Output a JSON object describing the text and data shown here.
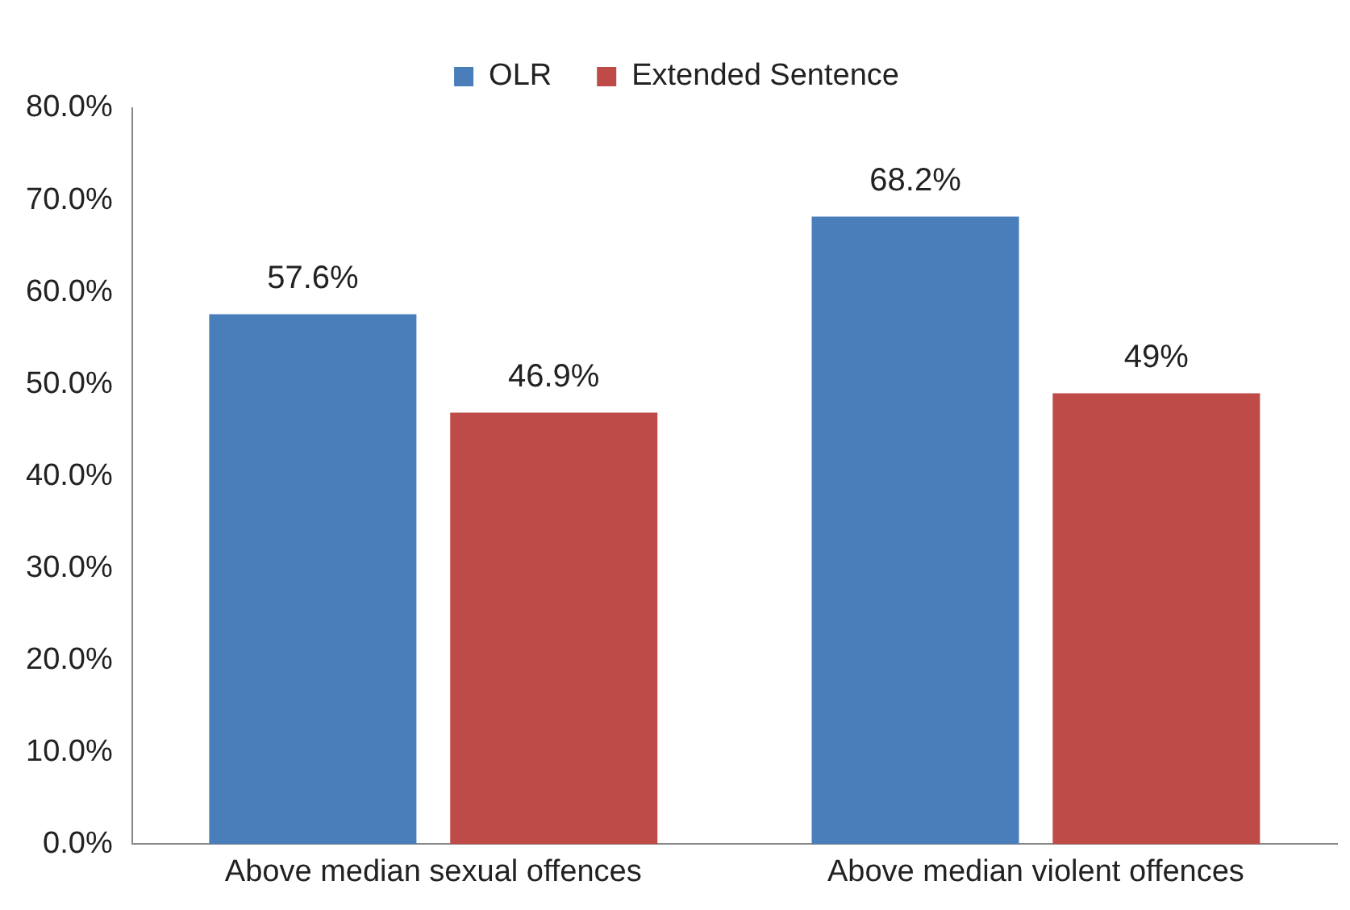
{
  "chart_data": {
    "type": "bar",
    "categories": [
      "Above median sexual offences",
      "Above median violent offences"
    ],
    "series": [
      {
        "name": "OLR",
        "color": "#4a7ebb",
        "values": [
          57.6,
          68.2
        ],
        "value_labels": [
          "57.6%",
          "68.2%"
        ]
      },
      {
        "name": "Extended Sentence",
        "color": "#be4b48",
        "values": [
          46.9,
          49
        ],
        "value_labels": [
          "46.9%",
          "49%"
        ]
      }
    ],
    "ylim": [
      0,
      80
    ],
    "yticks": [
      {
        "value": 0,
        "label": "0.0%"
      },
      {
        "value": 10,
        "label": "10.0%"
      },
      {
        "value": 20,
        "label": "20.0%"
      },
      {
        "value": 30,
        "label": "30.0%"
      },
      {
        "value": 40,
        "label": "40.0%"
      },
      {
        "value": 50,
        "label": "50.0%"
      },
      {
        "value": 60,
        "label": "60.0%"
      },
      {
        "value": 70,
        "label": "70.0%"
      },
      {
        "value": 80,
        "label": "80.0%"
      }
    ],
    "grid": false,
    "legend": "top"
  }
}
